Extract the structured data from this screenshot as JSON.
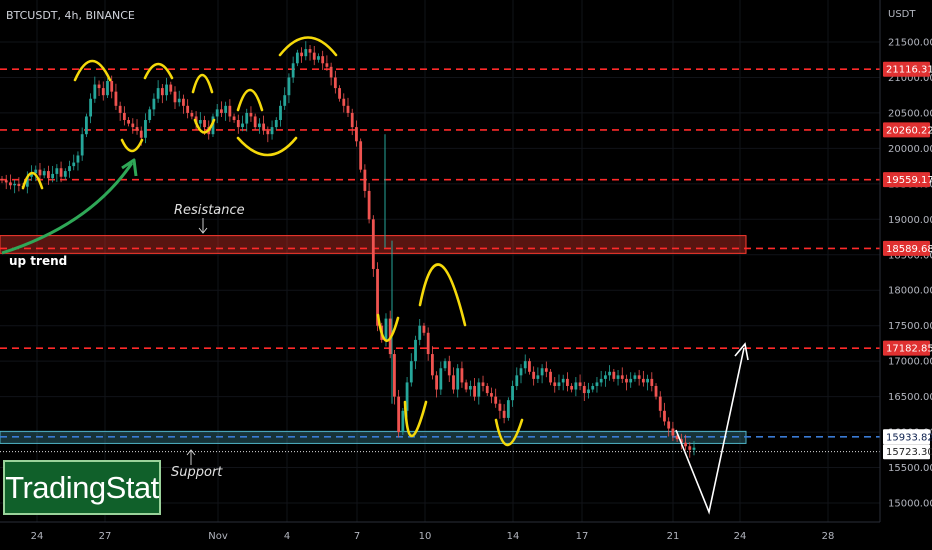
{
  "header": {
    "symbol": "BTCUSDT, 4h, BINANCE",
    "currency": "USDT"
  },
  "logo": {
    "text": "TradingStat"
  },
  "annotations": {
    "resistance": "Resistance",
    "support": "Support",
    "uptrend": "up trend"
  },
  "colors": {
    "background": "#000000",
    "up_candle": "#26a69a",
    "down_candle": "#ef5350",
    "level_line": "#ff2a2a",
    "resistance_zone": "#ff3b30",
    "support_zone": "#4fb3c6",
    "marker_yellow": "#f5d90a",
    "trend_arrow": "#2fa857"
  },
  "chart_data": {
    "type": "candlestick",
    "symbol": "BTCUSDT",
    "timeframe": "4h",
    "exchange": "BINANCE",
    "ylim": [
      14800,
      21900
    ],
    "y_ticks": [
      15000,
      15500,
      16000,
      16500,
      17000,
      17500,
      18000,
      18500,
      19000,
      19500,
      20000,
      20500,
      21000,
      21500
    ],
    "x_ticks": [
      "24",
      "27",
      "Nov",
      "4",
      "7",
      "10",
      "14",
      "17",
      "21",
      "24",
      "28"
    ],
    "horizontal_levels": [
      {
        "value": 21116.31,
        "label": "21116.31",
        "style": "dashed",
        "color": "#ff2a2a"
      },
      {
        "value": 20260.22,
        "label": "20260.22",
        "style": "dashed",
        "color": "#ff2a2a"
      },
      {
        "value": 19559.17,
        "label": "19559.17",
        "style": "dashed",
        "color": "#ff2a2a"
      },
      {
        "value": 18589.68,
        "label": "18589.68",
        "style": "dashed",
        "color": "#ff2a2a"
      },
      {
        "value": 17182.85,
        "label": "17182.85",
        "style": "dashed",
        "color": "#ff2a2a"
      },
      {
        "value": 15933.82,
        "label": "15933.82",
        "style": "dashed",
        "color": "#3a7bd5"
      },
      {
        "value": 15723.3,
        "label": "15723.30",
        "style": "dotted",
        "color": "#ffffff"
      }
    ],
    "zones": [
      {
        "name": "Resistance",
        "from": 18520,
        "to": 18770
      },
      {
        "name": "Support",
        "from": 15840,
        "to": 16010
      }
    ],
    "candles_close": [
      19550,
      19520,
      19480,
      19500,
      19470,
      19460,
      19600,
      19650,
      19700,
      19620,
      19680,
      19580,
      19640,
      19720,
      19600,
      19680,
      19750,
      19800,
      19900,
      20200,
      20450,
      20700,
      20900,
      20850,
      20750,
      20950,
      20800,
      20600,
      20500,
      20400,
      20350,
      20300,
      20250,
      20150,
      20400,
      20550,
      20700,
      20850,
      20750,
      20900,
      20800,
      20650,
      20700,
      20600,
      20500,
      20450,
      20350,
      20400,
      20300,
      20200,
      20450,
      20550,
      20500,
      20600,
      20450,
      20400,
      20300,
      20350,
      20500,
      20450,
      20300,
      20350,
      20250,
      20200,
      20300,
      20400,
      20600,
      20750,
      21000,
      21200,
      21350,
      21300,
      21400,
      21350,
      21250,
      21300,
      21200,
      21150,
      21000,
      20850,
      20700,
      20600,
      20500,
      20300,
      20100,
      19700,
      19400,
      19000,
      18300,
      17500,
      17300,
      17600,
      17100,
      16500,
      16000,
      16300,
      16700,
      17000,
      17300,
      17500,
      17400,
      17100,
      16800,
      16600,
      16900,
      17000,
      16800,
      16600,
      16900,
      16700,
      16600,
      16650,
      16500,
      16700,
      16650,
      16550,
      16500,
      16400,
      16300,
      16200,
      16450,
      16650,
      16800,
      16900,
      17000,
      16850,
      16750,
      16800,
      16900,
      16850,
      16700,
      16650,
      16700,
      16750,
      16650,
      16600,
      16700,
      16650,
      16550,
      16600,
      16650,
      16700,
      16750,
      16800,
      16850,
      16750,
      16800,
      16750,
      16700,
      16750,
      16800,
      16750,
      16700,
      16750,
      16650,
      16500,
      16300,
      16150,
      16050,
      15950,
      15900,
      15850,
      15800,
      15750,
      15780
    ]
  }
}
